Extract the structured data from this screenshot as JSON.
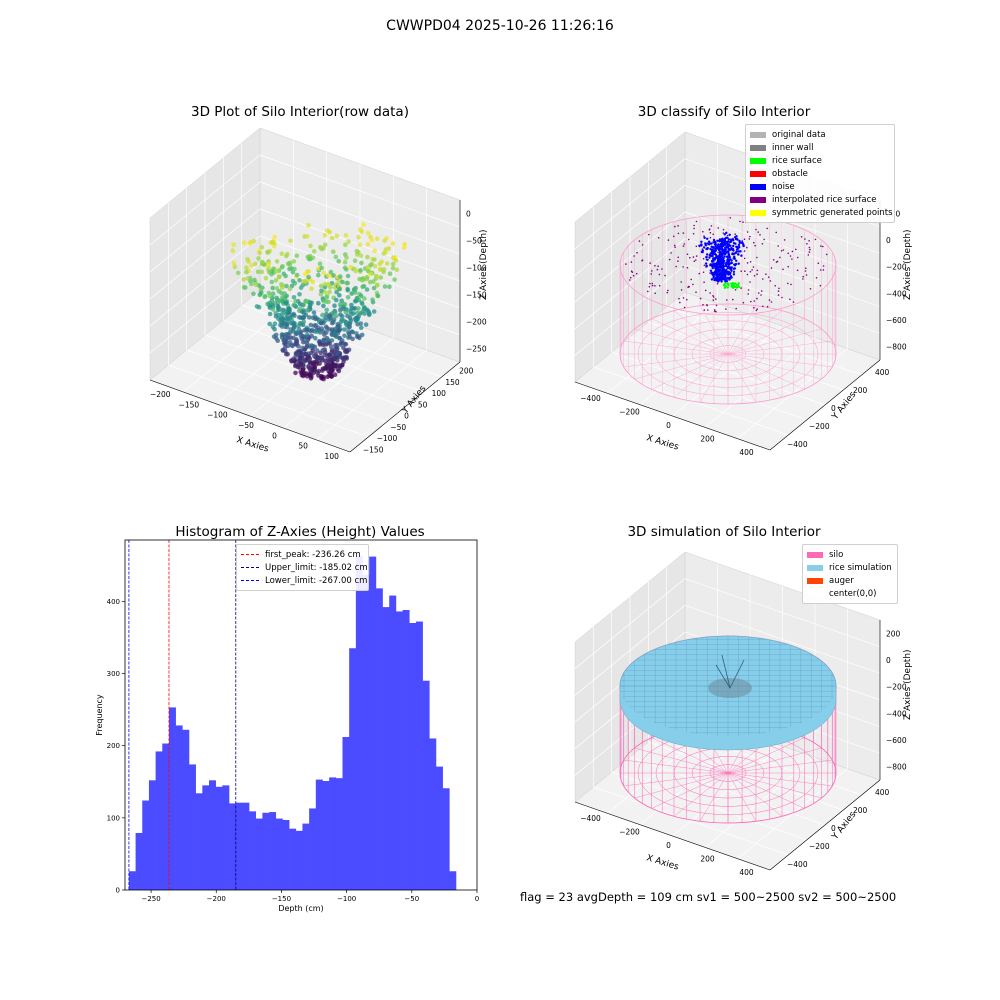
{
  "figure": {
    "title": "CWWPD04 2025-10-26 11:26:16"
  },
  "panels": {
    "raw": {
      "title": "3D Plot of Silo Interior(row data)",
      "xlabel": "X Axies",
      "ylabel": "Y Axies",
      "zlabel": "Z Axies (Depth)",
      "xticks": [
        "−200",
        "−150",
        "−100",
        "−50",
        "0",
        "50",
        "100"
      ],
      "yticks": [
        "−150",
        "−100",
        "−50",
        "0",
        "50",
        "100",
        "150",
        "200"
      ],
      "zticks": [
        "0",
        "−50",
        "−100",
        "−150",
        "−200",
        "−250"
      ]
    },
    "classify": {
      "title": "3D classify of Silo Interior",
      "xlabel": "X Axies",
      "ylabel": "Y Axies",
      "zlabel": "Z Axies (Depth)",
      "xticks": [
        "−400",
        "−200",
        "0",
        "200",
        "400"
      ],
      "yticks": [
        "−400",
        "−200",
        "0",
        "200",
        "400"
      ],
      "zticks": [
        "200",
        "0",
        "−200",
        "−400",
        "−600",
        "−800"
      ],
      "legend": [
        {
          "label": "original data",
          "color": "#b3b3b3"
        },
        {
          "label": "inner wall",
          "color": "#808080"
        },
        {
          "label": "rice surface",
          "color": "#00ff00"
        },
        {
          "label": "obstacle",
          "color": "#ff0000"
        },
        {
          "label": "noise",
          "color": "#0000ff"
        },
        {
          "label": "interpolated rice surface",
          "color": "#800080"
        },
        {
          "label": "symmetric generated points",
          "color": "#ffff00"
        }
      ]
    },
    "simulation": {
      "title": "3D simulation of Silo Interior",
      "xlabel": "X Axies",
      "ylabel": "Y Axies",
      "zlabel": "Z Axies (Depth)",
      "xticks": [
        "−400",
        "−200",
        "0",
        "200",
        "400"
      ],
      "yticks": [
        "−400",
        "−200",
        "0",
        "200",
        "400"
      ],
      "zticks": [
        "200",
        "0",
        "−200",
        "−400",
        "−600",
        "−800"
      ],
      "legend": [
        {
          "label": "silo",
          "color": "#ff69b4"
        },
        {
          "label": "rice simulation",
          "color": "#87ceeb"
        },
        {
          "label": "auger",
          "color": "#ff4500"
        },
        {
          "label": "center(0,0)",
          "color": "#ffffff"
        }
      ],
      "footer": "flag = 23  avgDepth = 109 cm  sv1 = 500~2500  sv2 = 500~2500"
    }
  },
  "chart_data": {
    "type": "bar",
    "title": "Histogram of Z-Axies (Height) Values",
    "xlabel": "Depth (cm)",
    "ylabel": "Frequency",
    "xlim": [
      -270,
      0
    ],
    "ylim": [
      0,
      485
    ],
    "xticks": [
      -250,
      -200,
      -150,
      -100,
      -50,
      0
    ],
    "yticks": [
      0,
      100,
      200,
      300,
      400
    ],
    "bin_start": -267,
    "bin_width": 5.12,
    "values": [
      26,
      79,
      124,
      152,
      192,
      203,
      253,
      228,
      222,
      174,
      134,
      145,
      152,
      143,
      145,
      120,
      121,
      121,
      109,
      99,
      107,
      108,
      99,
      97,
      85,
      82,
      92,
      113,
      153,
      151,
      156,
      155,
      212,
      335,
      463,
      437,
      462,
      418,
      392,
      408,
      386,
      388,
      370,
      372,
      290,
      210,
      171,
      141,
      26
    ],
    "color": "#4b4bff",
    "legend_position": "upper-center",
    "vlines": [
      {
        "label": "first_peak: -236.26 cm",
        "x": -236.26,
        "color": "#ff0000"
      },
      {
        "label": "Upper_limit: -185.02 cm",
        "x": -185.02,
        "color": "#00008b"
      },
      {
        "label": "Lower_limit: -267.00 cm",
        "x": -267.0,
        "color": "#0000ff"
      }
    ]
  }
}
